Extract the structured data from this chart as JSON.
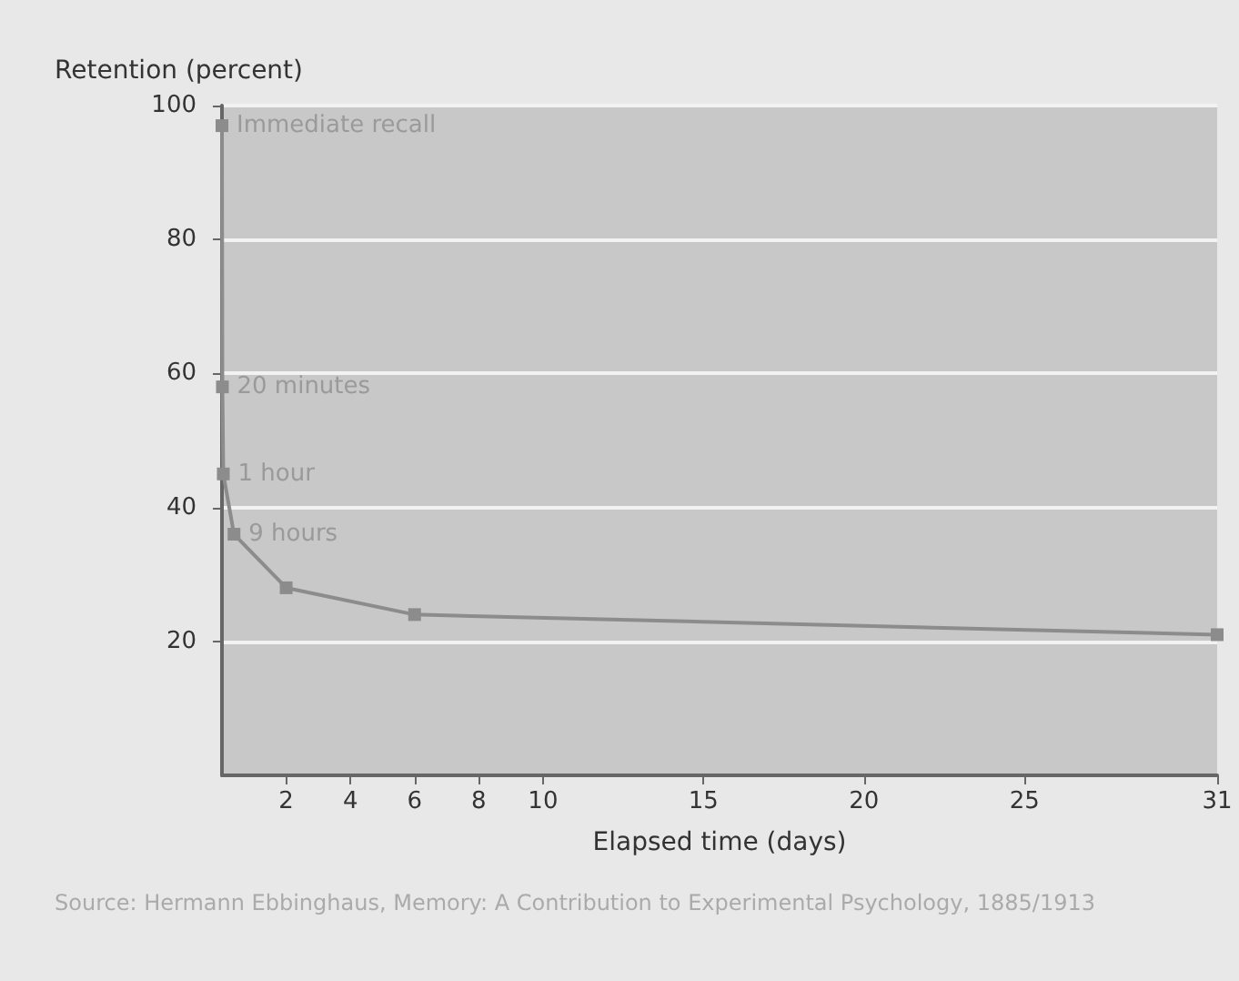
{
  "chart_data": {
    "type": "line",
    "ylabel": "Retention (percent)",
    "xlabel": "Elapsed time (days)",
    "x": [
      0,
      0.014,
      0.042,
      0.375,
      2,
      6,
      31
    ],
    "series": [
      {
        "color": "#8c8c8c",
        "values": [
          97,
          58,
          45,
          36,
          28,
          24,
          21
        ]
      }
    ],
    "xlim": [
      0,
      31
    ],
    "xticks": [
      2,
      4,
      6,
      8,
      10,
      15,
      20,
      25,
      31
    ],
    "ylim": [
      0,
      100
    ],
    "yticks": [
      20,
      40,
      60,
      80,
      100
    ],
    "grid": "y",
    "marker": "square",
    "line_style": "solid",
    "annotations": [
      {
        "text": "Immediate recall",
        "x": 0,
        "y": 97
      },
      {
        "text": "20 minutes",
        "x": 0.014,
        "y": 58
      },
      {
        "text": "1 hour",
        "x": 0.042,
        "y": 45
      },
      {
        "text": "9 hours",
        "x": 0.375,
        "y": 36
      },
      "Source: Hermann Ebbinghaus, Memory: A Contribution to Experimental Psychology, 1885/1913"
    ]
  }
}
